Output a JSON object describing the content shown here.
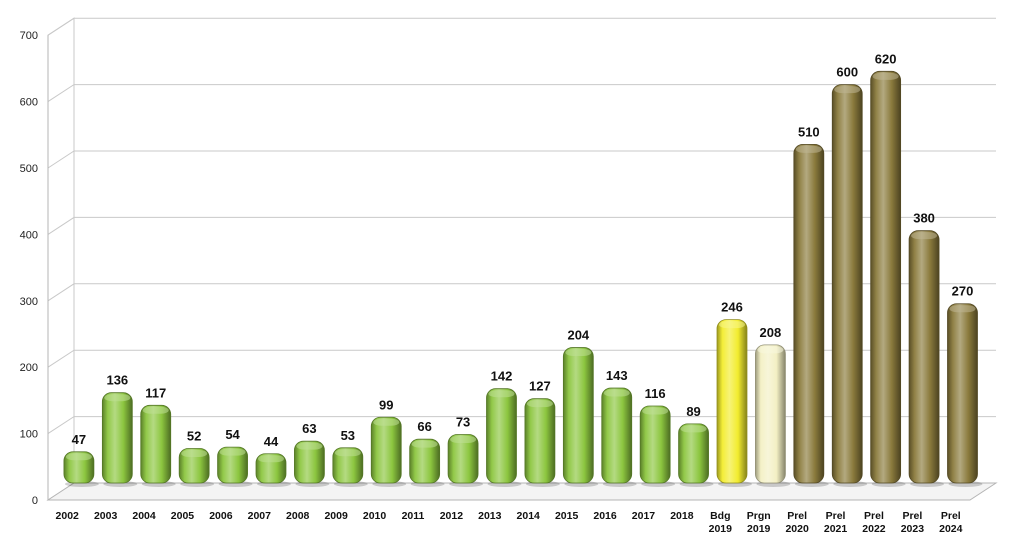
{
  "chart_data": {
    "type": "bar",
    "title": "",
    "xlabel": "",
    "ylabel": "",
    "ylim": [
      0,
      700
    ],
    "yticks": [
      0,
      100,
      200,
      300,
      400,
      500,
      600,
      700
    ],
    "grid": true,
    "style": "3d-rounded-columns",
    "categories": [
      [
        "2002"
      ],
      [
        "2003"
      ],
      [
        "2004"
      ],
      [
        "2005"
      ],
      [
        "2006"
      ],
      [
        "2007"
      ],
      [
        "2008"
      ],
      [
        "2009"
      ],
      [
        "2010"
      ],
      [
        "2011"
      ],
      [
        "2012"
      ],
      [
        "2013"
      ],
      [
        "2014"
      ],
      [
        "2015"
      ],
      [
        "2016"
      ],
      [
        "2017"
      ],
      [
        "2018"
      ],
      [
        "Bdg",
        "2019"
      ],
      [
        "Prgn",
        "2019"
      ],
      [
        "Prel",
        "2020"
      ],
      [
        "Prel",
        "2021"
      ],
      [
        "Prel",
        "2022"
      ],
      [
        "Prel",
        "2023"
      ],
      [
        "Prel",
        "2024"
      ]
    ],
    "values": [
      47,
      136,
      117,
      52,
      54,
      44,
      63,
      53,
      99,
      66,
      73,
      142,
      127,
      204,
      143,
      116,
      89,
      246,
      208,
      510,
      600,
      620,
      380,
      270
    ],
    "bar_colors": [
      "#8cc63f",
      "#8cc63f",
      "#8cc63f",
      "#8cc63f",
      "#8cc63f",
      "#8cc63f",
      "#8cc63f",
      "#8cc63f",
      "#8cc63f",
      "#8cc63f",
      "#8cc63f",
      "#8cc63f",
      "#8cc63f",
      "#8cc63f",
      "#8cc63f",
      "#8cc63f",
      "#8cc63f",
      "#f2ec2e",
      "#f3f0c4",
      "#8a7a3c",
      "#8a7a3c",
      "#8a7a3c",
      "#8a7a3c",
      "#8a7a3c"
    ],
    "data_labels": [
      "47",
      "136",
      "117",
      "52",
      "54",
      "44",
      "63",
      "53",
      "99",
      "66",
      "73",
      "142",
      "127",
      "204",
      "143",
      "116",
      "89",
      "246",
      "208",
      "510",
      "600",
      "620",
      "380",
      "270"
    ]
  }
}
